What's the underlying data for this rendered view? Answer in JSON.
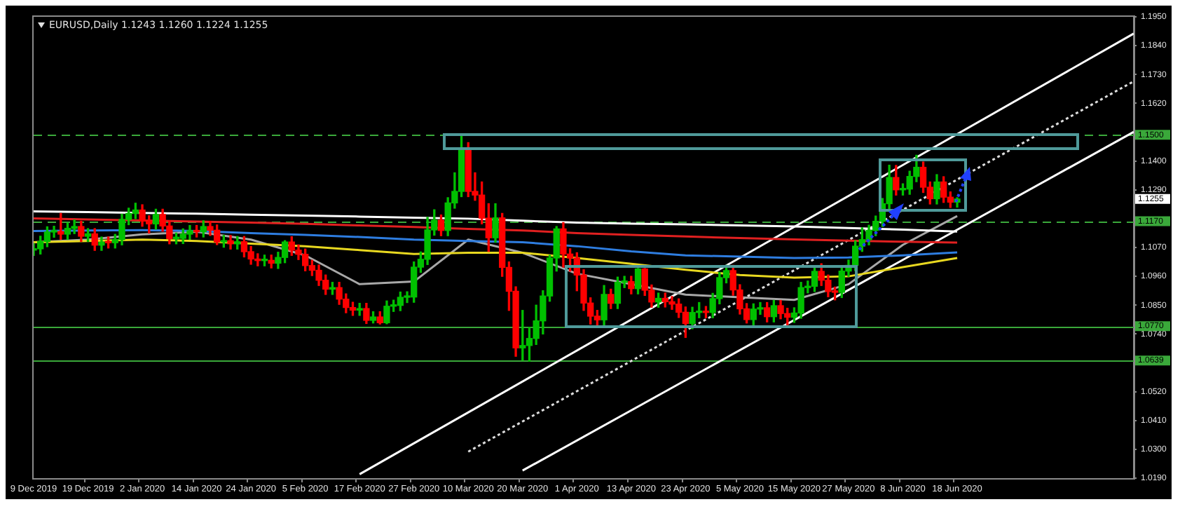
{
  "chart_data": {
    "type": "candlestick",
    "title": "EURUSD,Daily 1.1243 1.1260 1.1224 1.1255",
    "categories": [
      "9 Dec 2019",
      null,
      null,
      null,
      null,
      null,
      null,
      null,
      "19 Dec 2019",
      null,
      null,
      null,
      null,
      null,
      null,
      null,
      "2 Jan 2020",
      null,
      null,
      null,
      null,
      null,
      null,
      null,
      "14 Jan 2020",
      null,
      null,
      null,
      null,
      null,
      null,
      null,
      "24 Jan 2020",
      null,
      null,
      null,
      null,
      null,
      null,
      null,
      "5 Feb 2020",
      null,
      null,
      null,
      null,
      null,
      null,
      null,
      "17 Feb 2020",
      null,
      null,
      null,
      null,
      null,
      null,
      null,
      "27 Feb 2020",
      null,
      null,
      null,
      null,
      null,
      null,
      null,
      "10 Mar 2020",
      null,
      null,
      null,
      null,
      null,
      null,
      null,
      "20 Mar 2020",
      null,
      null,
      null,
      null,
      null,
      null,
      null,
      "1 Apr 2020",
      null,
      null,
      null,
      null,
      null,
      null,
      null,
      "13 Apr 2020",
      null,
      null,
      null,
      null,
      null,
      null,
      null,
      "23 Apr 2020",
      null,
      null,
      null,
      null,
      null,
      null,
      null,
      "5 May 2020",
      null,
      null,
      null,
      null,
      null,
      null,
      null,
      "15 May 2020",
      null,
      null,
      null,
      null,
      null,
      null,
      null,
      "27 May 2020",
      null,
      null,
      null,
      null,
      null,
      null,
      null,
      "8 Jun 2020",
      null,
      null,
      null,
      null,
      null,
      null,
      null,
      "18 Jun 2020",
      null,
      null,
      null,
      null,
      null,
      null,
      null,
      null,
      null,
      null,
      null,
      null,
      null,
      null,
      null,
      null,
      null,
      null,
      null,
      null,
      null,
      null,
      null,
      null,
      null,
      null
    ],
    "ohlc": [
      [
        1.106,
        1.1085,
        1.104,
        1.1065
      ],
      [
        1.1065,
        1.1113,
        1.1045,
        1.1093
      ],
      [
        1.1093,
        1.1149,
        1.1073,
        1.1129
      ],
      [
        1.1129,
        1.1151,
        1.1109,
        1.1131
      ],
      [
        1.1131,
        1.12,
        1.1101,
        1.1121
      ],
      [
        1.1121,
        1.1163,
        1.1101,
        1.1143
      ],
      [
        1.1143,
        1.1175,
        1.1123,
        1.115
      ],
      [
        1.115,
        1.117,
        1.1093,
        1.1113
      ],
      [
        1.1113,
        1.1142,
        1.1093,
        1.1122
      ],
      [
        1.1122,
        1.1142,
        1.1059,
        1.1079
      ],
      [
        1.1079,
        1.111,
        1.1059,
        1.109
      ],
      [
        1.109,
        1.111,
        1.1068,
        1.1088
      ],
      [
        1.1088,
        1.112,
        1.1068,
        1.11
      ],
      [
        1.11,
        1.1197,
        1.108,
        1.1177
      ],
      [
        1.1177,
        1.122,
        1.1157,
        1.12
      ],
      [
        1.12,
        1.1239,
        1.118,
        1.1213
      ],
      [
        1.1213,
        1.1233,
        1.1151,
        1.1171
      ],
      [
        1.1171,
        1.1191,
        1.1125,
        1.116
      ],
      [
        1.116,
        1.1216,
        1.114,
        1.1196
      ],
      [
        1.1196,
        1.1216,
        1.1132,
        1.1152
      ],
      [
        1.1152,
        1.1172,
        1.1084,
        1.1104
      ],
      [
        1.1104,
        1.1125,
        1.1084,
        1.1105
      ],
      [
        1.1105,
        1.1141,
        1.1085,
        1.1121
      ],
      [
        1.1121,
        1.1154,
        1.1101,
        1.1134
      ],
      [
        1.1134,
        1.1154,
        1.111,
        1.113
      ],
      [
        1.113,
        1.1172,
        1.111,
        1.115
      ],
      [
        1.115,
        1.117,
        1.1116,
        1.1136
      ],
      [
        1.1136,
        1.1156,
        1.1081,
        1.1091
      ],
      [
        1.1091,
        1.1116,
        1.1071,
        1.1096
      ],
      [
        1.1096,
        1.1116,
        1.1064,
        1.1084
      ],
      [
        1.1084,
        1.1112,
        1.1064,
        1.1092
      ],
      [
        1.1092,
        1.1112,
        1.1034,
        1.1054
      ],
      [
        1.1054,
        1.1074,
        1.1006,
        1.1026
      ],
      [
        1.1026,
        1.1046,
        1.1,
        1.102
      ],
      [
        1.102,
        1.1041,
        1.1,
        1.1021
      ],
      [
        1.1021,
        1.1041,
        1.0992,
        1.101
      ],
      [
        1.101,
        1.1052,
        1.099,
        1.1032
      ],
      [
        1.1032,
        1.1096,
        1.1012,
        1.1091
      ],
      [
        1.1091,
        1.1111,
        1.104,
        1.106
      ],
      [
        1.106,
        1.108,
        1.1024,
        1.1044
      ],
      [
        1.1044,
        1.1064,
        1.0981,
        1.1001
      ],
      [
        1.1001,
        1.1021,
        1.0963,
        1.0983
      ],
      [
        1.0983,
        1.1003,
        1.0925,
        1.0945
      ],
      [
        1.0945,
        1.0965,
        1.0891,
        1.0911
      ],
      [
        1.0911,
        1.0937,
        1.0891,
        1.0917
      ],
      [
        1.0917,
        1.0937,
        1.0853,
        1.0873
      ],
      [
        1.0873,
        1.0893,
        1.0821,
        1.0841
      ],
      [
        1.0841,
        1.0861,
        1.0811,
        1.0831
      ],
      [
        1.0831,
        1.0857,
        1.0811,
        1.0837
      ],
      [
        1.0837,
        1.0857,
        1.078,
        1.0792
      ],
      [
        1.0792,
        1.0825,
        1.0782,
        1.0805
      ],
      [
        1.0805,
        1.0825,
        1.0778,
        1.0783
      ],
      [
        1.0783,
        1.0866,
        1.0779,
        1.0846
      ],
      [
        1.0846,
        1.0869,
        1.0826,
        1.0849
      ],
      [
        1.0849,
        1.09,
        1.0829,
        1.088
      ],
      [
        1.088,
        1.0901,
        1.086,
        1.0881
      ],
      [
        1.0881,
        1.1015,
        1.0861,
        1.0995
      ],
      [
        1.0995,
        1.1053,
        1.0975,
        1.1025
      ],
      [
        1.1025,
        1.1185,
        1.1005,
        1.1137
      ],
      [
        1.1137,
        1.1214,
        1.1117,
        1.1174
      ],
      [
        1.1174,
        1.1194,
        1.1115,
        1.1135
      ],
      [
        1.1135,
        1.126,
        1.1115,
        1.124
      ],
      [
        1.124,
        1.1355,
        1.122,
        1.1284
      ],
      [
        1.1284,
        1.1495,
        1.1264,
        1.145
      ],
      [
        1.145,
        1.147,
        1.1264,
        1.1284
      ],
      [
        1.1284,
        1.1355,
        1.125,
        1.127
      ],
      [
        1.127,
        1.132,
        1.116,
        1.1182
      ],
      [
        1.1182,
        1.1237,
        1.1055,
        1.1107
      ],
      [
        1.1107,
        1.1237,
        1.109,
        1.1183
      ],
      [
        1.1183,
        1.12,
        1.096,
        1.0994
      ],
      [
        1.0994,
        1.1015,
        1.083,
        1.0903
      ],
      [
        1.0903,
        1.092,
        1.0655,
        1.0687
      ],
      [
        1.0687,
        1.083,
        1.064,
        1.0696
      ],
      [
        1.0696,
        1.0765,
        1.0636,
        1.0723
      ],
      [
        1.0723,
        1.085,
        1.07,
        1.079
      ],
      [
        1.079,
        1.0905,
        1.074,
        1.0885
      ],
      [
        1.0885,
        1.104,
        1.0865,
        1.103
      ],
      [
        1.103,
        1.115,
        1.098,
        1.1141
      ],
      [
        1.1141,
        1.1165,
        1.0995,
        1.1045
      ],
      [
        1.1045,
        1.1065,
        1.098,
        1.103
      ],
      [
        1.103,
        1.105,
        1.0905,
        1.0965
      ],
      [
        1.0965,
        1.0985,
        1.083,
        1.0858
      ],
      [
        1.0858,
        1.0878,
        1.0778,
        1.0808
      ],
      [
        1.0808,
        1.083,
        1.077,
        1.0794
      ],
      [
        1.0794,
        1.0925,
        1.0774,
        1.0891
      ],
      [
        1.0891,
        1.0911,
        1.0837,
        1.0857
      ],
      [
        1.0857,
        1.0957,
        1.0837,
        1.0937
      ],
      [
        1.0937,
        1.096,
        1.0917,
        1.094
      ],
      [
        1.094,
        1.096,
        1.0893,
        1.0913
      ],
      [
        1.0913,
        1.099,
        1.0893,
        1.0988
      ],
      [
        1.0988,
        1.099,
        1.0887,
        1.0907
      ],
      [
        1.0907,
        1.0927,
        1.0842,
        1.0862
      ],
      [
        1.0862,
        1.0896,
        1.0842,
        1.0876
      ],
      [
        1.0876,
        1.0896,
        1.0843,
        1.0863
      ],
      [
        1.0863,
        1.0883,
        1.0834,
        1.0854
      ],
      [
        1.0854,
        1.0874,
        1.0803,
        1.0823
      ],
      [
        1.0823,
        1.0843,
        1.0727,
        1.078
      ],
      [
        1.078,
        1.0842,
        1.076,
        1.0822
      ],
      [
        1.0822,
        1.086,
        1.0802,
        1.0825
      ],
      [
        1.0825,
        1.0845,
        1.0802,
        1.0822
      ],
      [
        1.0822,
        1.0895,
        1.0802,
        1.0875
      ],
      [
        1.0875,
        1.0975,
        1.0855,
        1.0955
      ],
      [
        1.0955,
        1.1002,
        1.0935,
        1.0982
      ],
      [
        1.0982,
        1.1002,
        1.0888,
        1.0908
      ],
      [
        1.0908,
        1.0928,
        1.0816,
        1.0836
      ],
      [
        1.0836,
        1.0856,
        1.0782,
        1.0795
      ],
      [
        1.0795,
        1.0855,
        1.0775,
        1.0835
      ],
      [
        1.0835,
        1.086,
        1.0815,
        1.084
      ],
      [
        1.084,
        1.086,
        1.0786,
        1.0806
      ],
      [
        1.0806,
        1.0868,
        1.0786,
        1.0848
      ],
      [
        1.0848,
        1.0868,
        1.0798,
        1.0818
      ],
      [
        1.0818,
        1.0838,
        1.0775,
        1.0804
      ],
      [
        1.0804,
        1.084,
        1.0784,
        1.082
      ],
      [
        1.082,
        1.0937,
        1.08,
        1.0917
      ],
      [
        1.0917,
        1.0942,
        1.0897,
        1.0922
      ],
      [
        1.0922,
        1.0999,
        1.0902,
        1.0979
      ],
      [
        1.0979,
        1.1008,
        1.0925,
        1.0945
      ],
      [
        1.0945,
        1.0965,
        1.0882,
        1.0902
      ],
      [
        1.0902,
        1.0919,
        1.087,
        1.0899
      ],
      [
        1.0899,
        1.1,
        1.0879,
        1.098
      ],
      [
        1.098,
        1.1022,
        1.096,
        1.1002
      ],
      [
        1.1002,
        1.1095,
        1.0982,
        1.1075
      ],
      [
        1.1075,
        1.1145,
        1.1055,
        1.11
      ],
      [
        1.11,
        1.1155,
        1.108,
        1.1135
      ],
      [
        1.1135,
        1.119,
        1.1115,
        1.117
      ],
      [
        1.117,
        1.1257,
        1.115,
        1.1237
      ],
      [
        1.1237,
        1.1384,
        1.1217,
        1.1337
      ],
      [
        1.1337,
        1.1383,
        1.127,
        1.129
      ],
      [
        1.129,
        1.1313,
        1.127,
        1.1293
      ],
      [
        1.1293,
        1.1361,
        1.1273,
        1.1341
      ],
      [
        1.1341,
        1.1422,
        1.1321,
        1.1376
      ],
      [
        1.1376,
        1.1396,
        1.128,
        1.13
      ],
      [
        1.13,
        1.132,
        1.1236,
        1.1256
      ],
      [
        1.1256,
        1.1348,
        1.1236,
        1.132
      ],
      [
        1.132,
        1.134,
        1.1242,
        1.1262
      ],
      [
        1.1262,
        1.1282,
        1.1223,
        1.1243
      ],
      [
        1.1243,
        1.126,
        1.1224,
        1.1255
      ],
      null,
      null,
      null,
      null,
      null,
      null,
      null,
      null,
      null,
      null,
      null,
      null,
      null,
      null,
      null,
      null,
      null,
      null,
      null,
      null,
      null,
      null,
      null,
      null,
      null,
      null
    ],
    "colors": [
      "#00c000",
      "#00c000",
      "#00c000",
      "#00c000",
      "#ff0000",
      "#00c000",
      "#00c000",
      "#ff0000",
      "#00c000",
      "#ff0000",
      "#00c000",
      "#ff0000",
      "#00c000",
      "#00c000",
      "#00c000",
      "#00c000",
      "#ff0000",
      "#ff0000",
      "#00c000",
      "#ff0000",
      "#ff0000",
      "#00c000",
      "#00c000",
      "#00c000",
      "#ff0000",
      "#00c000",
      "#ff0000",
      "#ff0000",
      "#00c000",
      "#ff0000",
      "#00c000",
      "#ff0000",
      "#ff0000",
      "#ff0000",
      "#00c000",
      "#ff0000",
      "#00c000",
      "#00c000",
      "#ff0000",
      "#ff0000",
      "#ff0000",
      "#ff0000",
      "#ff0000",
      "#ff0000",
      "#00c000",
      "#ff0000",
      "#ff0000",
      "#ff0000",
      "#00c000",
      "#ff0000",
      "#00c000",
      "#ff0000",
      "#00c000",
      "#00c000",
      "#00c000",
      "#00c000",
      "#00c000",
      "#00c000",
      "#00c000",
      "#00c000",
      "#ff0000",
      "#00c000",
      "#00c000",
      "#00c000",
      "#ff0000",
      "#ff0000",
      "#ff0000",
      "#ff0000",
      "#00c000",
      "#ff0000",
      "#ff0000",
      "#ff0000",
      "#00c000",
      "#00c000",
      "#00c000",
      "#00c000",
      "#00c000",
      "#00c000",
      "#ff0000",
      "#ff0000",
      "#ff0000",
      "#ff0000",
      "#ff0000",
      "#ff0000",
      "#00c000",
      "#ff0000",
      "#00c000",
      "#00c000",
      "#ff0000",
      "#00c000",
      "#ff0000",
      "#ff0000",
      "#00c000",
      "#ff0000",
      "#ff0000",
      "#ff0000",
      "#ff0000",
      "#00c000",
      "#00c000",
      "#ff0000",
      "#00c000",
      "#00c000",
      "#00c000",
      "#ff0000",
      "#ff0000",
      "#ff0000",
      "#00c000",
      "#00c000",
      "#ff0000",
      "#00c000",
      "#ff0000",
      "#ff0000",
      "#00c000",
      "#00c000",
      "#00c000",
      "#00c000",
      "#ff0000",
      "#ff0000",
      "#ff0000",
      "#00c000",
      "#00c000",
      "#00c000",
      "#00c000",
      "#00c000",
      "#00c000",
      "#00c000",
      "#00c000",
      "#ff0000",
      "#00c000",
      "#00c000",
      "#00c000",
      "#ff0000",
      "#ff0000",
      "#00c000",
      "#ff0000",
      "#ff0000",
      "#00c000",
      null,
      null,
      null,
      null,
      null,
      null,
      null,
      null,
      null,
      null,
      null,
      null,
      null,
      null,
      null,
      null,
      null,
      null,
      null,
      null,
      null,
      null,
      null,
      null,
      null,
      null
    ],
    "series": [
      {
        "type": "line",
        "color": "#ffffff",
        "values": [
          1.1208,
          null,
          null,
          null,
          null,
          null,
          null,
          null,
          1.1205,
          null,
          null,
          null,
          null,
          null,
          null,
          null,
          1.1202,
          null,
          null,
          null,
          null,
          null,
          null,
          null,
          1.1199,
          null,
          null,
          null,
          null,
          null,
          null,
          null,
          1.1195,
          null,
          null,
          null,
          null,
          null,
          null,
          null,
          1.1192,
          null,
          null,
          null,
          null,
          null,
          null,
          null,
          1.1188,
          null,
          null,
          null,
          null,
          null,
          null,
          null,
          1.1184,
          null,
          null,
          null,
          null,
          null,
          null,
          null,
          1.118,
          null,
          null,
          null,
          null,
          null,
          null,
          null,
          1.1172,
          null,
          null,
          null,
          null,
          null,
          null,
          null,
          1.1165,
          null,
          null,
          null,
          null,
          null,
          null,
          null,
          1.1161,
          null,
          null,
          null,
          null,
          null,
          null,
          null,
          1.1158,
          null,
          null,
          null,
          null,
          null,
          null,
          null,
          1.1154,
          null,
          null,
          null,
          null,
          null,
          null,
          null,
          1.115,
          null,
          null,
          null,
          null,
          null,
          null,
          null,
          1.1144,
          null,
          null,
          null,
          null,
          null,
          null,
          null,
          1.1138,
          null,
          null,
          null,
          null,
          null,
          null,
          null,
          1.1131,
          null,
          null,
          null,
          null,
          null,
          null,
          null,
          null,
          null,
          null,
          null,
          null,
          null,
          null,
          null,
          null,
          null,
          null,
          null,
          null,
          null,
          null,
          null,
          null,
          null,
          null
        ]
      },
      {
        "type": "line",
        "color": "#e02020",
        "values": [
          1.1181,
          null,
          null,
          null,
          null,
          null,
          null,
          null,
          1.1177,
          null,
          null,
          null,
          null,
          null,
          null,
          null,
          1.1173,
          null,
          null,
          null,
          null,
          null,
          null,
          null,
          1.1169,
          null,
          null,
          null,
          null,
          null,
          null,
          null,
          1.1165,
          null,
          null,
          null,
          null,
          null,
          null,
          null,
          1.116,
          null,
          null,
          null,
          null,
          null,
          null,
          null,
          1.1154,
          null,
          null,
          null,
          null,
          null,
          null,
          null,
          1.1148,
          null,
          null,
          null,
          null,
          null,
          null,
          null,
          1.1141,
          null,
          null,
          null,
          null,
          null,
          null,
          null,
          1.1135,
          null,
          null,
          null,
          null,
          null,
          null,
          null,
          1.1125,
          null,
          null,
          null,
          null,
          null,
          null,
          null,
          1.1118,
          null,
          null,
          null,
          null,
          null,
          null,
          null,
          1.1112,
          null,
          null,
          null,
          null,
          null,
          null,
          null,
          1.1106,
          null,
          null,
          null,
          null,
          null,
          null,
          null,
          1.1101,
          null,
          null,
          null,
          null,
          null,
          null,
          null,
          1.1096,
          null,
          null,
          null,
          null,
          null,
          null,
          null,
          1.1092,
          null,
          null,
          null,
          null,
          null,
          null,
          null,
          1.1089,
          null,
          null,
          null,
          null,
          null,
          null,
          null,
          null,
          null,
          null,
          null,
          null,
          null,
          null,
          null,
          null,
          null,
          null,
          null,
          null,
          null,
          null,
          null,
          null,
          null,
          null
        ]
      },
      {
        "type": "line",
        "color": "#2e7de0",
        "values": [
          1.1133,
          null,
          null,
          null,
          null,
          null,
          null,
          null,
          1.1135,
          null,
          null,
          null,
          null,
          null,
          null,
          null,
          1.1136,
          null,
          null,
          null,
          null,
          null,
          null,
          null,
          1.1133,
          null,
          null,
          null,
          null,
          null,
          null,
          null,
          1.1125,
          null,
          null,
          null,
          null,
          null,
          null,
          null,
          1.1118,
          null,
          null,
          null,
          null,
          null,
          null,
          null,
          1.111,
          null,
          null,
          null,
          null,
          null,
          null,
          null,
          1.11,
          null,
          null,
          null,
          null,
          null,
          null,
          null,
          1.1095,
          null,
          null,
          null,
          null,
          null,
          null,
          null,
          1.109,
          null,
          null,
          null,
          null,
          null,
          null,
          null,
          1.1075,
          null,
          null,
          null,
          null,
          null,
          null,
          null,
          1.1055,
          null,
          null,
          null,
          null,
          null,
          null,
          null,
          1.104,
          null,
          null,
          null,
          null,
          null,
          null,
          null,
          1.1035,
          null,
          null,
          null,
          null,
          null,
          null,
          null,
          1.103,
          null,
          null,
          null,
          null,
          null,
          null,
          null,
          1.1032,
          null,
          null,
          null,
          null,
          null,
          null,
          null,
          1.104,
          null,
          null,
          null,
          null,
          null,
          null,
          null,
          1.1051,
          null,
          null,
          null,
          null,
          null,
          null,
          null,
          null,
          null,
          null,
          null,
          null,
          null,
          null,
          null,
          null,
          null,
          null,
          null,
          null,
          null,
          null,
          null,
          null,
          null,
          null
        ]
      },
      {
        "type": "line",
        "color": "#e8d820",
        "values": [
          1.109,
          null,
          null,
          null,
          null,
          null,
          null,
          null,
          1.1095,
          null,
          null,
          null,
          null,
          null,
          null,
          null,
          1.11,
          null,
          null,
          null,
          null,
          null,
          null,
          null,
          1.1095,
          null,
          null,
          null,
          null,
          null,
          null,
          null,
          1.1085,
          null,
          null,
          null,
          null,
          null,
          null,
          null,
          1.1075,
          null,
          null,
          null,
          null,
          null,
          null,
          null,
          1.106,
          null,
          null,
          null,
          null,
          null,
          null,
          null,
          1.1045,
          null,
          null,
          null,
          null,
          null,
          null,
          null,
          1.105,
          null,
          null,
          null,
          null,
          null,
          null,
          null,
          1.105,
          null,
          null,
          null,
          null,
          null,
          null,
          null,
          1.103,
          null,
          null,
          null,
          null,
          null,
          null,
          null,
          1.1008,
          null,
          null,
          null,
          null,
          null,
          null,
          null,
          1.0985,
          null,
          null,
          null,
          null,
          null,
          null,
          null,
          1.0965,
          null,
          null,
          null,
          null,
          null,
          null,
          null,
          1.0955,
          null,
          null,
          null,
          null,
          null,
          null,
          null,
          1.096,
          null,
          null,
          null,
          null,
          null,
          null,
          null,
          1.0995,
          null,
          null,
          null,
          null,
          null,
          null,
          null,
          1.103,
          null,
          null,
          null,
          null,
          null,
          null,
          null,
          null,
          null,
          null,
          null,
          null,
          null,
          null,
          null,
          null,
          null,
          null,
          null,
          null,
          null,
          null,
          null,
          null,
          null,
          null
        ]
      },
      {
        "type": "line",
        "color": "#a8a8a8",
        "values": [
          1.109,
          null,
          null,
          null,
          null,
          null,
          null,
          null,
          1.11,
          null,
          null,
          null,
          null,
          null,
          null,
          null,
          1.112,
          null,
          null,
          null,
          null,
          null,
          null,
          null,
          1.113,
          null,
          null,
          null,
          null,
          null,
          null,
          null,
          1.11,
          null,
          null,
          null,
          null,
          null,
          null,
          null,
          1.104,
          null,
          null,
          null,
          null,
          null,
          null,
          null,
          1.093,
          null,
          null,
          null,
          null,
          null,
          null,
          null,
          1.094,
          null,
          null,
          null,
          null,
          null,
          null,
          null,
          1.11,
          null,
          null,
          null,
          null,
          null,
          null,
          null,
          1.105,
          null,
          null,
          null,
          null,
          null,
          null,
          null,
          1.097,
          null,
          null,
          null,
          null,
          null,
          null,
          null,
          1.093,
          null,
          null,
          null,
          null,
          null,
          null,
          null,
          1.089,
          null,
          null,
          null,
          null,
          null,
          null,
          null,
          1.088,
          null,
          null,
          null,
          null,
          null,
          null,
          null,
          1.087,
          null,
          null,
          null,
          null,
          null,
          null,
          null,
          1.093,
          null,
          null,
          null,
          null,
          null,
          null,
          null,
          1.108,
          null,
          null,
          null,
          null,
          null,
          null,
          null,
          1.119,
          null,
          null,
          null,
          null,
          null,
          null,
          null,
          null,
          null,
          null,
          null,
          null,
          null,
          null,
          null,
          null,
          null,
          null,
          null,
          null,
          null,
          null,
          null,
          null,
          null,
          null
        ]
      },
      {
        "type": "line",
        "color": "#ffffff",
        "values": [
          null,
          null,
          null,
          null,
          null,
          null,
          null,
          null,
          null,
          null,
          null,
          null,
          null,
          null,
          null,
          null,
          null,
          null,
          null,
          null,
          null,
          null,
          null,
          null,
          null,
          null,
          null,
          null,
          null,
          null,
          null,
          null,
          null,
          null,
          null,
          null,
          null,
          null,
          null,
          null,
          null,
          null,
          null,
          null,
          null,
          null,
          null,
          null,
          1.0205,
          null,
          null,
          null,
          null,
          null,
          null,
          null,
          null,
          null,
          null,
          null,
          null,
          null,
          null,
          null,
          null,
          null,
          null,
          null,
          null,
          null,
          null,
          null,
          null,
          null,
          null,
          null,
          null,
          null,
          null,
          null,
          null,
          null,
          null,
          null,
          null,
          null,
          null,
          null,
          null,
          null,
          null,
          null,
          null,
          null,
          null,
          null,
          null,
          null,
          null,
          null,
          null,
          null,
          null,
          null,
          null,
          null,
          null,
          null,
          null,
          null,
          null,
          null,
          null,
          null,
          null,
          null,
          null,
          null,
          null,
          null,
          null,
          null,
          null,
          null,
          null,
          null,
          null,
          null,
          null,
          null,
          null,
          null,
          null,
          null,
          null,
          null,
          null,
          null,
          null,
          null,
          null,
          null,
          null,
          null,
          null,
          null,
          null,
          null,
          null,
          null,
          null,
          null,
          null,
          null,
          null,
          null,
          null,
          null,
          null,
          null,
          null,
          null,
          1.1886
        ]
      },
      {
        "type": "line",
        "color": "#dddddd",
        "line_style": "dotted",
        "values": [
          null,
          null,
          null,
          null,
          null,
          null,
          null,
          null,
          null,
          null,
          null,
          null,
          null,
          null,
          null,
          null,
          null,
          null,
          null,
          null,
          null,
          null,
          null,
          null,
          null,
          null,
          null,
          null,
          null,
          null,
          null,
          null,
          null,
          null,
          null,
          null,
          null,
          null,
          null,
          null,
          null,
          null,
          null,
          null,
          null,
          null,
          null,
          null,
          null,
          null,
          null,
          null,
          null,
          null,
          null,
          null,
          null,
          null,
          null,
          null,
          null,
          null,
          null,
          null,
          1.0291,
          null,
          null,
          null,
          null,
          null,
          null,
          null,
          null,
          null,
          null,
          null,
          null,
          null,
          null,
          null,
          null,
          null,
          null,
          null,
          null,
          null,
          null,
          null,
          null,
          null,
          null,
          null,
          null,
          null,
          null,
          null,
          null,
          null,
          null,
          null,
          null,
          null,
          null,
          null,
          null,
          null,
          null,
          null,
          null,
          null,
          null,
          null,
          null,
          null,
          null,
          null,
          null,
          null,
          null,
          null,
          null,
          null,
          null,
          null,
          null,
          null,
          null,
          null,
          null,
          null,
          null,
          null,
          null,
          null,
          null,
          null,
          null,
          null,
          null,
          null,
          null,
          null,
          null,
          null,
          null,
          null,
          null,
          null,
          null,
          null,
          null,
          null,
          null,
          null,
          null,
          null,
          null,
          null,
          null,
          null,
          null,
          null,
          1.1704
        ]
      },
      {
        "type": "line",
        "color": "#ffffff",
        "values": [
          null,
          null,
          null,
          null,
          null,
          null,
          null,
          null,
          null,
          null,
          null,
          null,
          null,
          null,
          null,
          null,
          null,
          null,
          null,
          null,
          null,
          null,
          null,
          null,
          null,
          null,
          null,
          null,
          null,
          null,
          null,
          null,
          null,
          null,
          null,
          null,
          null,
          null,
          null,
          null,
          null,
          null,
          null,
          null,
          null,
          null,
          null,
          null,
          null,
          null,
          null,
          null,
          null,
          null,
          null,
          null,
          null,
          null,
          null,
          null,
          null,
          null,
          null,
          null,
          null,
          null,
          null,
          null,
          null,
          null,
          null,
          null,
          1.0219,
          null,
          null,
          null,
          null,
          null,
          null,
          null,
          null,
          null,
          null,
          null,
          null,
          null,
          null,
          null,
          null,
          null,
          null,
          null,
          null,
          null,
          null,
          null,
          null,
          null,
          null,
          null,
          null,
          null,
          null,
          null,
          null,
          null,
          null,
          null,
          null,
          null,
          null,
          null,
          null,
          null,
          null,
          null,
          null,
          null,
          null,
          null,
          null,
          null,
          null,
          null,
          null,
          null,
          null,
          null,
          null,
          null,
          null,
          null,
          null,
          null,
          null,
          null,
          null,
          null,
          null,
          null,
          null,
          null,
          null,
          null,
          null,
          null,
          null,
          null,
          null,
          null,
          null,
          null,
          null,
          null,
          null,
          null,
          null,
          null,
          null,
          null,
          null,
          null,
          1.1511
        ]
      }
    ],
    "ylim": [
      1.019,
      1.195
    ],
    "yticks": [
      {
        "value": 1.019,
        "label": "1.0190"
      },
      {
        "value": 1.03,
        "label": "1.0300"
      },
      {
        "value": 1.041,
        "label": "1.0410"
      },
      {
        "value": 1.052,
        "label": "1.0520"
      },
      {
        "value": 1.074,
        "label": "1.0740"
      },
      {
        "value": 1.085,
        "label": "1.0850"
      },
      {
        "value": 1.096,
        "label": "1.0960"
      },
      {
        "value": 1.107,
        "label": "1.1070"
      },
      {
        "value": 1.129,
        "label": "1.1290"
      },
      {
        "value": 1.14,
        "label": "1.1400"
      },
      {
        "value": 1.162,
        "label": "1.1620"
      },
      {
        "value": 1.173,
        "label": "1.1730"
      },
      {
        "value": 1.184,
        "label": "1.1840"
      },
      {
        "value": 1.195,
        "label": "1.1950"
      }
    ],
    "ref_lines": [
      {
        "axis": "y",
        "value": 1.15,
        "label": "1.1500",
        "color": "#3aa83a",
        "line_style": "dashed"
      },
      {
        "axis": "y",
        "value": 1.117,
        "label": "1.1170",
        "color": "#3aa83a",
        "line_style": "dashed"
      },
      {
        "axis": "y",
        "value": 1.077,
        "label": "1.0770",
        "color": "#3aa83a",
        "line_style": "solid"
      },
      {
        "axis": "y",
        "value": 1.0639,
        "label": "1.0639",
        "color": "#3aa83a",
        "line_style": "solid"
      }
    ],
    "annotations": [
      "1.1255"
    ]
  }
}
